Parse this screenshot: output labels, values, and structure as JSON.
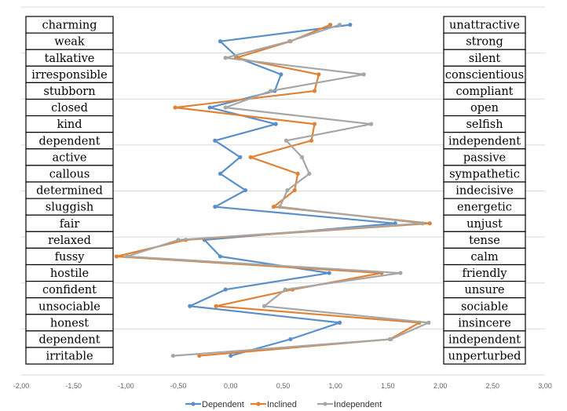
{
  "chart_data": {
    "type": "line",
    "orientation": "horizontal-values",
    "title": "",
    "xlabel": "",
    "ylabel": "",
    "xlim": [
      -2.0,
      3.0
    ],
    "x_ticks": [
      "-2,00",
      "-1,50",
      "-1,00",
      "-0,50",
      "0,00",
      "0,50",
      "1,00",
      "1,50",
      "2,00",
      "2,50",
      "3,00"
    ],
    "grid": "horizontal",
    "legend_position": "bottom",
    "left_adjectives": [
      "charming",
      "weak",
      "talkative",
      "irresponsible",
      "stubborn",
      "closed",
      "kind",
      "dependent",
      "active",
      "callous",
      "determined",
      "sluggish",
      "fair",
      "relaxed",
      "fussy",
      "hostile",
      "confident",
      "unsociable",
      "honest",
      "dependent",
      "irritable"
    ],
    "right_adjectives": [
      "unattractive",
      "strong",
      "silent",
      "conscientious",
      "compliant",
      "open",
      "selfish",
      "independent",
      "passive",
      "sympathetic",
      "indecisive",
      "energetic",
      "unjust",
      "tense",
      "calm",
      "friendly",
      "unsure",
      "sociable",
      "insincere",
      "independent",
      "unperturbed"
    ],
    "series": [
      {
        "name": "Dependent",
        "color": "#5b8fc9",
        "values": [
          1.14,
          -0.1,
          0.07,
          0.48,
          0.42,
          -0.2,
          0.43,
          -0.15,
          0.09,
          -0.1,
          0.14,
          -0.15,
          1.57,
          -0.25,
          -0.1,
          0.94,
          -0.05,
          -0.39,
          1.04,
          0.57,
          0.0
        ]
      },
      {
        "name": "Inclined",
        "color": "#e08235",
        "values": [
          0.95,
          0.57,
          0.05,
          0.84,
          0.8,
          -0.53,
          0.8,
          0.77,
          0.19,
          0.64,
          0.61,
          0.41,
          1.9,
          -0.43,
          -1.09,
          1.44,
          0.59,
          -0.14,
          1.8,
          1.52,
          -0.3
        ]
      },
      {
        "name": "Independent",
        "color": "#a6a6a6",
        "values": [
          1.04,
          0.56,
          -0.05,
          1.27,
          0.38,
          -0.05,
          1.34,
          0.53,
          0.68,
          0.75,
          0.54,
          0.47,
          1.83,
          -0.5,
          -0.99,
          1.62,
          0.52,
          0.32,
          1.89,
          1.53,
          -0.55
        ]
      }
    ]
  }
}
